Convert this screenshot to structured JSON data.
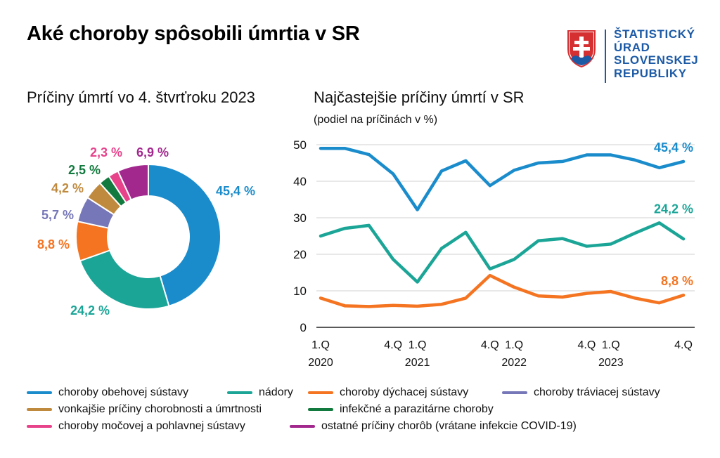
{
  "header": {
    "title": "Aké choroby spôsobili úmrtia v SR",
    "logo_lines": [
      "ŠTATISTICKÝ",
      "ÚRAD",
      "SLOVENSKEJ",
      "REPUBLIKY"
    ]
  },
  "colors": {
    "obehova": "#1a8ccc",
    "nadory": "#1ba597",
    "dychacia": "#f47421",
    "traviaca": "#7677b8",
    "vonkajsie": "#c08a3e",
    "infekcne": "#127a3e",
    "mocova": "#e7438b",
    "ostatne": "#a2288e",
    "brand": "#1c5aa6"
  },
  "chart_data": [
    {
      "type": "pie",
      "title": "Príčiny úmrtí vo 4. štvrťroku 2023",
      "donut": true,
      "slices": [
        {
          "key": "obehova",
          "name": "choroby obehovej sústavy",
          "value": 45.4,
          "label": "45,4 %"
        },
        {
          "key": "nadory",
          "name": "nádory",
          "value": 24.2,
          "label": "24,2 %"
        },
        {
          "key": "dychacia",
          "name": "choroby dýchacej sústavy",
          "value": 8.8,
          "label": "8,8 %"
        },
        {
          "key": "traviaca",
          "name": "choroby tráviacej sústavy",
          "value": 5.7,
          "label": "5,7 %"
        },
        {
          "key": "vonkajsie",
          "name": "vonkajšie príčiny chorobnosti a úmrtnosti",
          "value": 4.2,
          "label": "4,2 %"
        },
        {
          "key": "infekcne",
          "name": "infekčné a parazitárne choroby",
          "value": 2.5,
          "label": "2,5 %"
        },
        {
          "key": "mocova",
          "name": "choroby močovej a pohlavnej sústavy",
          "value": 2.3,
          "label": "2,3 %"
        },
        {
          "key": "ostatne",
          "name": "ostatné príčiny chorôb (vrátane infekcie COVID-19)",
          "value": 6.9,
          "label": "6,9 %"
        }
      ]
    },
    {
      "type": "line",
      "title": "Najčastejšie príčiny úmrtí v SR",
      "subtitle": "(podiel na príčinách v %)",
      "ylim": [
        0,
        50
      ],
      "yticks": [
        0,
        10,
        20,
        30,
        40,
        50
      ],
      "x": [
        "1.Q 2020",
        "2.Q 2020",
        "3.Q 2020",
        "4.Q 2020",
        "1.Q 2021",
        "2.Q 2021",
        "3.Q 2021",
        "4.Q 2021",
        "1.Q 2022",
        "2.Q 2022",
        "3.Q 2022",
        "4.Q 2022",
        "1.Q 2023",
        "2.Q 2023",
        "3.Q 2023",
        "4.Q 2023"
      ],
      "xtick_labels": [
        {
          "index": 0,
          "quarter": "1.Q",
          "year": "2020"
        },
        {
          "index": 3,
          "quarter": "4.Q",
          "year": ""
        },
        {
          "index": 4,
          "quarter": "1.Q",
          "year": "2021"
        },
        {
          "index": 7,
          "quarter": "4.Q",
          "year": ""
        },
        {
          "index": 8,
          "quarter": "1.Q",
          "year": "2022"
        },
        {
          "index": 11,
          "quarter": "4.Q",
          "year": ""
        },
        {
          "index": 12,
          "quarter": "1.Q",
          "year": "2023"
        },
        {
          "index": 15,
          "quarter": "4.Q",
          "year": ""
        }
      ],
      "series": [
        {
          "key": "obehova",
          "name": "choroby obehovej sústavy",
          "end_label": "45,4 %",
          "values": [
            49.0,
            49.0,
            47.3,
            42.0,
            32.2,
            42.8,
            45.6,
            38.8,
            43.0,
            45.0,
            45.4,
            47.2,
            47.2,
            45.8,
            43.7,
            45.4
          ]
        },
        {
          "key": "nadory",
          "name": "nádory",
          "end_label": "24,2 %",
          "values": [
            25.0,
            27.1,
            27.9,
            18.6,
            12.4,
            21.6,
            26.0,
            16.0,
            18.6,
            23.7,
            24.3,
            22.2,
            22.8,
            25.8,
            28.6,
            24.2
          ]
        },
        {
          "key": "dychacia",
          "name": "choroby dýchacej sústavy",
          "end_label": "8,8 %",
          "values": [
            8.0,
            5.9,
            5.7,
            6.0,
            5.8,
            6.3,
            8.0,
            14.2,
            11.0,
            8.6,
            8.3,
            9.3,
            9.8,
            8.0,
            6.7,
            8.8
          ]
        }
      ]
    }
  ],
  "legend": [
    {
      "key": "obehova",
      "label": "choroby obehovej sústavy"
    },
    {
      "key": "nadory",
      "label": "nádory"
    },
    {
      "key": "dychacia",
      "label": "choroby dýchacej sústavy"
    },
    {
      "key": "traviaca",
      "label": "choroby tráviacej sústavy"
    },
    {
      "key": "vonkajsie",
      "label": "vonkajšie príčiny chorobnosti a úmrtnosti"
    },
    {
      "key": "infekcne",
      "label": "infekčné a parazitárne choroby"
    },
    {
      "key": "mocova",
      "label": "choroby močovej a pohlavnej sústavy"
    },
    {
      "key": "ostatne",
      "label": "ostatné príčiny chorôb (vrátane infekcie COVID-19)"
    }
  ]
}
